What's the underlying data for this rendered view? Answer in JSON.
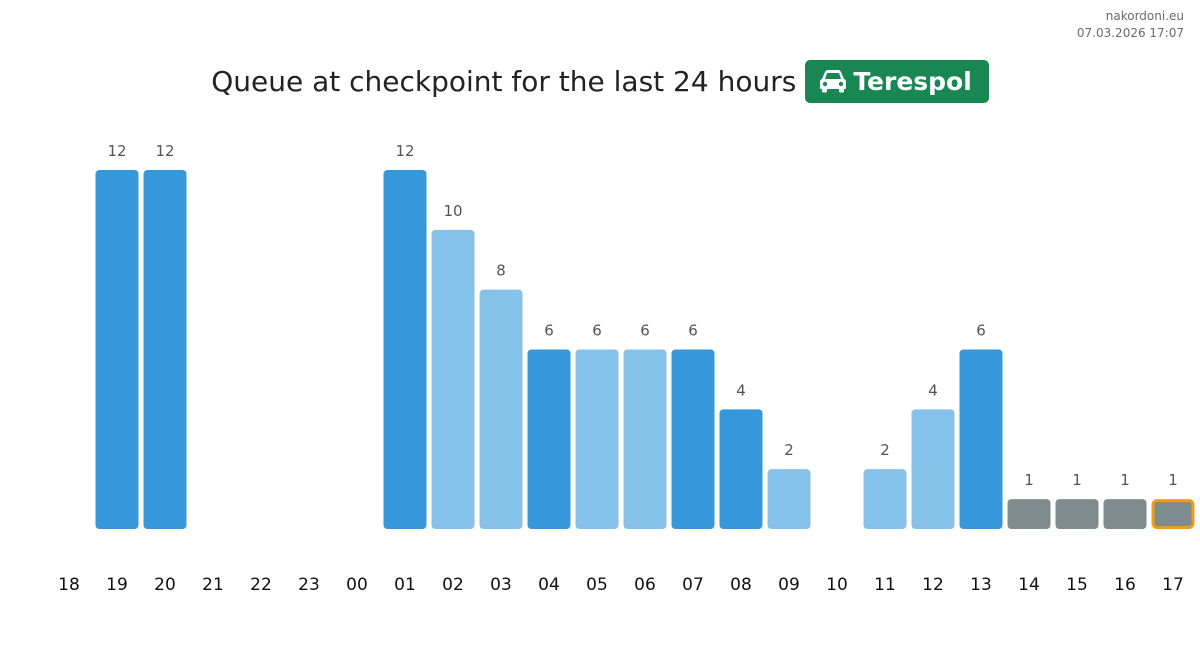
{
  "site": {
    "name": "nakordoni.eu",
    "timestamp": "07.03.2026 17:07"
  },
  "header": {
    "title": "Queue at checkpoint for the last 24 hours",
    "checkpoint": "Terespol",
    "checkpoint_icon": "car-icon",
    "badge_color": "#198754"
  },
  "chart_data": {
    "type": "bar",
    "title": "Queue at checkpoint for the last 24 hours",
    "xlabel": "",
    "ylabel": "",
    "grid": false,
    "ylim": [
      0,
      12
    ],
    "categories": [
      "18",
      "19",
      "20",
      "21",
      "22",
      "23",
      "00",
      "01",
      "02",
      "03",
      "04",
      "05",
      "06",
      "07",
      "08",
      "09",
      "10",
      "11",
      "12",
      "13",
      "14",
      "15",
      "16",
      "17"
    ],
    "values": [
      null,
      12,
      12,
      null,
      null,
      null,
      null,
      12,
      10,
      8,
      6,
      6,
      6,
      6,
      4,
      2,
      null,
      2,
      4,
      6,
      1,
      1,
      1,
      1
    ],
    "bar_colors": [
      "",
      "#3498db",
      "#3498db",
      "",
      "",
      "",
      "",
      "#3498db",
      "#85c1e9",
      "#85c1e9",
      "#3498db",
      "#85c1e9",
      "#85c1e9",
      "#3498db",
      "#3498db",
      "#85c1e9",
      "",
      "#85c1e9",
      "#85c1e9",
      "#3498db",
      "#7f8c8d",
      "#7f8c8d",
      "#7f8c8d",
      "#7f8c8d"
    ],
    "highlight_index": 23,
    "highlight_color": "#f39c12"
  }
}
